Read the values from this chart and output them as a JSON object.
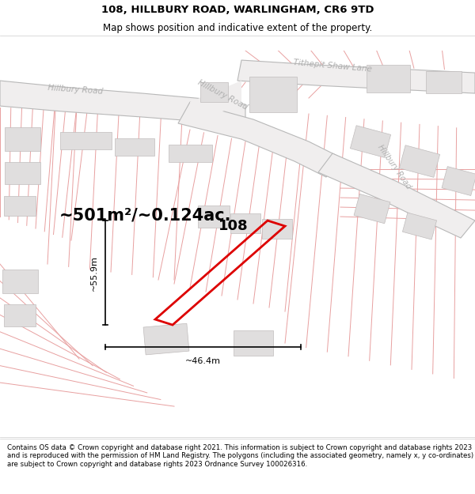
{
  "title": "108, HILLBURY ROAD, WARLINGHAM, CR6 9TD",
  "subtitle": "Map shows position and indicative extent of the property.",
  "footer": "Contains OS data © Crown copyright and database right 2021. This information is subject to Crown copyright and database rights 2023 and is reproduced with the permission of HM Land Registry. The polygons (including the associated geometry, namely x, y co-ordinates) are subject to Crown copyright and database rights 2023 Ordnance Survey 100026316.",
  "area_text": "~501m²/~0.124ac.",
  "width_label": "~46.4m",
  "height_label": "~55.9m",
  "property_label": "108",
  "map_bg": "#ffffff",
  "cadastral_color": "#e8a0a0",
  "road_edge_color": "#b0b0b0",
  "road_label_color": "#b0b0b0",
  "building_fill": "#e0dede",
  "building_edge": "#c0bcbc",
  "property_outline_color": "#dd0000",
  "title_fontsize": 9.5,
  "subtitle_fontsize": 8.5,
  "footer_fontsize": 6.2,
  "area_fontsize": 15,
  "dim_fontsize": 8,
  "prop_label_fontsize": 13
}
